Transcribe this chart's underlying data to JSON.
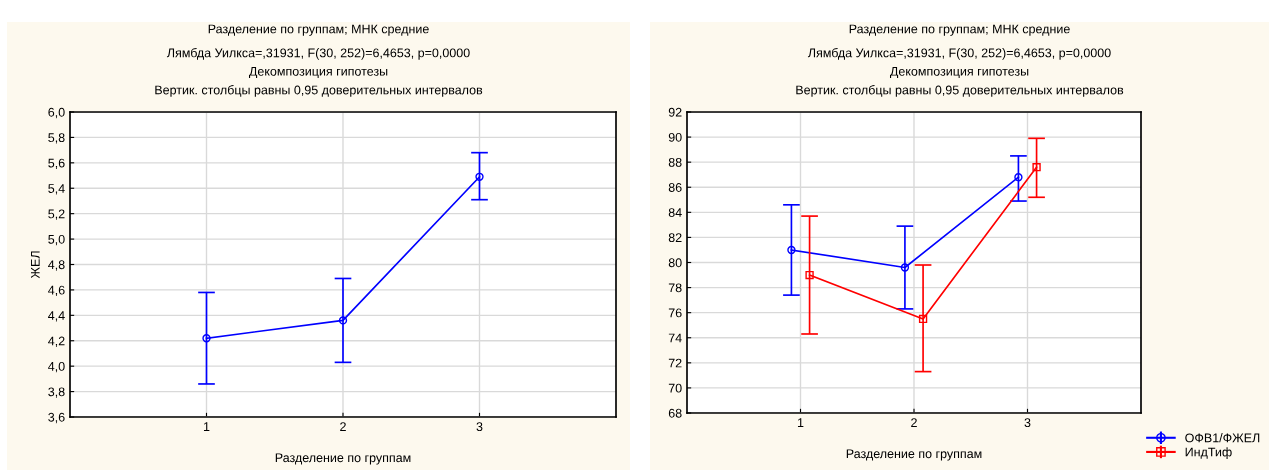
{
  "chart_data": [
    {
      "type": "line",
      "title": "Разделение по группам; МНК средние",
      "subtitle": "Лямбда Уилкса=,31931, F(30, 252)=6,4653, p=0,0000\nДекомпозиция гипотезы\nВертик. столбцы равны 0,95 доверительных интервалов",
      "xlabel": "Разделение по группам",
      "ylabel": "ЖЕЛ",
      "xlim": [
        0,
        4
      ],
      "xticks": [
        1,
        2,
        3
      ],
      "ylim": [
        3.6,
        6.0
      ],
      "yticks": [
        {
          "value": 3.6,
          "label": "3,6"
        },
        {
          "value": 3.8,
          "label": "3,8"
        },
        {
          "value": 4.0,
          "label": "4,0"
        },
        {
          "value": 4.2,
          "label": "4,2"
        },
        {
          "value": 4.4,
          "label": "4,4"
        },
        {
          "value": 4.6,
          "label": "4,6"
        },
        {
          "value": 4.8,
          "label": "4,8"
        },
        {
          "value": 5.0,
          "label": "5,0"
        },
        {
          "value": 5.2,
          "label": "5,2"
        },
        {
          "value": 5.4,
          "label": "5,4"
        },
        {
          "value": 5.6,
          "label": "5,6"
        },
        {
          "value": 5.8,
          "label": "5,8"
        },
        {
          "value": 6.0,
          "label": "6,0"
        }
      ],
      "grid": true,
      "marker": "circle",
      "series": [
        {
          "color": "#0000ff",
          "x": [
            1,
            2,
            3
          ],
          "values": [
            4.22,
            4.36,
            5.49
          ],
          "errors": [
            [
              3.86,
              4.58
            ],
            [
              4.03,
              4.69
            ],
            [
              5.31,
              5.68
            ]
          ]
        }
      ]
    },
    {
      "type": "line",
      "title": "Разделение по группам; МНК средние",
      "subtitle": "Лямбда Уилкса=,31931, F(30, 252)=6,4653, p=0,0000\nДекомпозиция гипотезы\nВертик. столбцы равны 0,95 доверительных интервалов",
      "xlabel": "Разделение по группам",
      "xlim": [
        0,
        4
      ],
      "xticks": [
        1,
        2,
        3
      ],
      "ylim": [
        68,
        92
      ],
      "yticks": [
        68,
        70,
        72,
        74,
        76,
        78,
        80,
        82,
        84,
        86,
        88,
        90,
        92
      ],
      "grid": true,
      "legend": "bottom right",
      "series": [
        {
          "name": "ОФВ1/ФЖЕЛ",
          "color": "#0000ff",
          "marker": "circle",
          "x": [
            0.92,
            1.92,
            2.92
          ],
          "values": [
            81.0,
            79.6,
            86.8
          ],
          "errors": [
            [
              77.4,
              84.6
            ],
            [
              76.3,
              82.9
            ],
            [
              84.9,
              88.5
            ]
          ]
        },
        {
          "name": "ИндТиф",
          "color": "#ff0000",
          "marker": "square",
          "x": [
            1.08,
            2.08,
            3.08
          ],
          "values": [
            79.0,
            75.5,
            87.6
          ],
          "errors": [
            [
              74.3,
              83.7
            ],
            [
              71.3,
              79.8
            ],
            [
              85.2,
              89.9
            ]
          ]
        }
      ]
    }
  ]
}
